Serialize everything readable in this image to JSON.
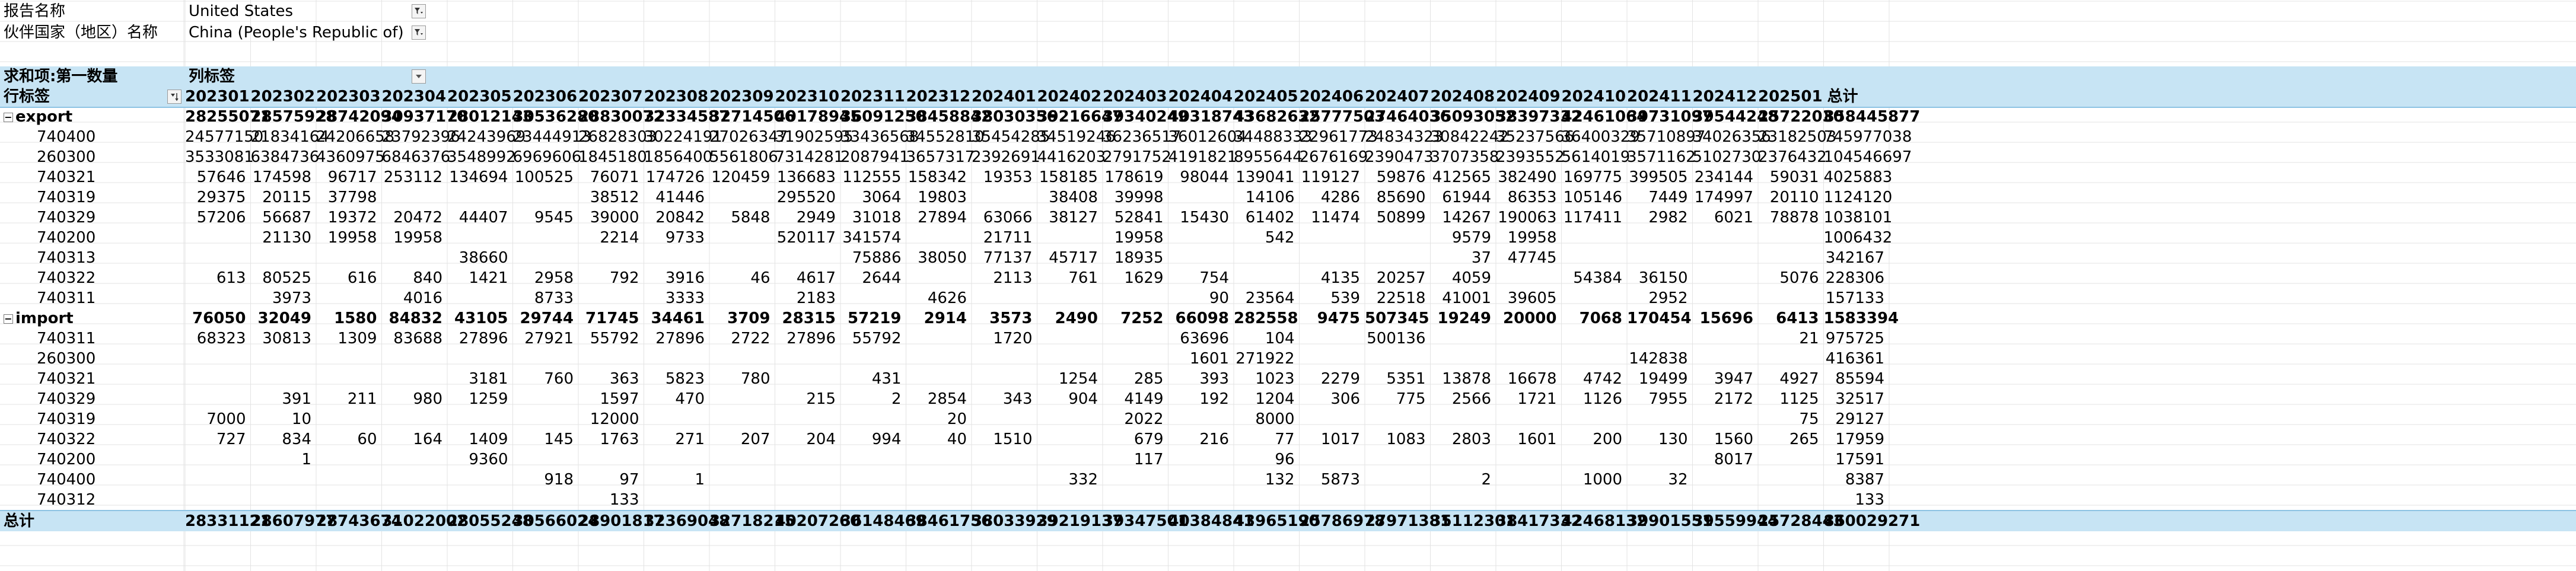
{
  "filters": [
    {
      "label": "报告名称",
      "value": "United States"
    },
    {
      "label": "伙伴国家（地区）名称",
      "value": "China (People's Republic of)"
    }
  ],
  "pivot": {
    "value_label": "求和项:第一数量",
    "col_label_caption": "列标签",
    "row_label_caption": "行标签",
    "total_label": "总计",
    "columns": [
      "202301",
      "202302",
      "202303",
      "202304",
      "202305",
      "202306",
      "202307",
      "202308",
      "202309",
      "202310",
      "202311",
      "202312",
      "202401",
      "202402",
      "202403",
      "202404",
      "202405",
      "202406",
      "202407",
      "202408",
      "202409",
      "202410",
      "202411",
      "202412",
      "202501",
      "总计"
    ],
    "groups": [
      {
        "name": "export",
        "totals": [
          "28255071",
          "28575928",
          "28742094",
          "30937170",
          "28012143",
          "30536280",
          "28830072",
          "32334587",
          "32714506",
          "40178945",
          "36091250",
          "38458842",
          "38030356",
          "39216647",
          "39340249",
          "40318743",
          "43682632",
          "25777503",
          "27464036",
          "35093052",
          "38397332",
          "42461064",
          "39731097",
          "39544248",
          "25722030",
          "858445877"
        ],
        "rows": [
          {
            "code": "740400",
            "values": [
              "24577150",
              "21834164",
              "24206658",
              "23792396",
              "24243969",
              "23444913",
              "26828303",
              "30224191",
              "27026347",
              "31902595",
              "33436568",
              "34552810",
              "35454285",
              "34519246",
              "36236517",
              "36012604",
              "34488333",
              "22961773",
              "24834323",
              "30842242",
              "35237566",
              "36400329",
              "35710897",
              "34026356",
              "23182503",
              "745977038"
            ]
          },
          {
            "code": "260300",
            "values": [
              "3533081",
              "6384736",
              "4360975",
              "6846376",
              "3548992",
              "6969606",
              "1845180",
              "1856400",
              "5561806",
              "7314281",
              "2087941",
              "3657317",
              "2392691",
              "4416203",
              "2791752",
              "4191821",
              "8955644",
              "2676169",
              "2390473",
              "3707358",
              "2393552",
              "5614019",
              "3571162",
              "5102730",
              "2376432",
              "104546697"
            ]
          },
          {
            "code": "740321",
            "values": [
              "57646",
              "174598",
              "96717",
              "253112",
              "134694",
              "100525",
              "76071",
              "174726",
              "120459",
              "136683",
              "112555",
              "158342",
              "19353",
              "158185",
              "178619",
              "98044",
              "139041",
              "119127",
              "59876",
              "412565",
              "382490",
              "169775",
              "399505",
              "234144",
              "59031",
              "4025883"
            ]
          },
          {
            "code": "740319",
            "values": [
              "29375",
              "20115",
              "37798",
              "",
              "",
              "",
              "38512",
              "41446",
              "",
              "295520",
              "3064",
              "19803",
              "",
              "38408",
              "39998",
              "",
              "14106",
              "4286",
              "85690",
              "61944",
              "86353",
              "105146",
              "7449",
              "174997",
              "20110",
              "1124120"
            ]
          },
          {
            "code": "740329",
            "values": [
              "57206",
              "56687",
              "19372",
              "20472",
              "44407",
              "9545",
              "39000",
              "20842",
              "5848",
              "2949",
              "31018",
              "27894",
              "63066",
              "38127",
              "52841",
              "15430",
              "61402",
              "11474",
              "50899",
              "14267",
              "190063",
              "117411",
              "2982",
              "6021",
              "78878",
              "1038101"
            ]
          },
          {
            "code": "740200",
            "values": [
              "",
              "21130",
              "19958",
              "19958",
              "",
              "",
              "2214",
              "9733",
              "",
              "520117",
              "341574",
              "",
              "21711",
              "",
              "19958",
              "",
              "542",
              "",
              "",
              "9579",
              "19958",
              "",
              "",
              "",
              "",
              "1006432"
            ]
          },
          {
            "code": "740313",
            "values": [
              "",
              "",
              "",
              "",
              "38660",
              "",
              "",
              "",
              "",
              "",
              "75886",
              "38050",
              "77137",
              "45717",
              "18935",
              "",
              "",
              "",
              "",
              "37",
              "47745",
              "",
              "",
              "",
              "",
              "342167"
            ]
          },
          {
            "code": "740322",
            "values": [
              "613",
              "80525",
              "616",
              "840",
              "1421",
              "2958",
              "792",
              "3916",
              "46",
              "4617",
              "2644",
              "",
              "2113",
              "761",
              "1629",
              "754",
              "",
              "4135",
              "20257",
              "4059",
              "",
              "54384",
              "36150",
              "",
              "5076",
              "228306"
            ]
          },
          {
            "code": "740311",
            "values": [
              "",
              "3973",
              "",
              "4016",
              "",
              "8733",
              "",
              "3333",
              "",
              "2183",
              "",
              "4626",
              "",
              "",
              "",
              "90",
              "23564",
              "539",
              "22518",
              "41001",
              "39605",
              "",
              "2952",
              "",
              "",
              "157133"
            ]
          }
        ]
      },
      {
        "name": "import",
        "totals": [
          "76050",
          "32049",
          "1580",
          "84832",
          "43105",
          "29744",
          "71745",
          "34461",
          "3709",
          "28315",
          "57219",
          "2914",
          "3573",
          "2490",
          "7252",
          "66098",
          "282558",
          "9475",
          "507345",
          "19249",
          "20000",
          "7068",
          "170454",
          "15696",
          "6413",
          "1583394"
        ],
        "rows": [
          {
            "code": "740311",
            "values": [
              "68323",
              "30813",
              "1309",
              "83688",
              "27896",
              "27921",
              "55792",
              "27896",
              "2722",
              "27896",
              "55792",
              "",
              "1720",
              "",
              "",
              "63696",
              "104",
              "",
              "500136",
              "",
              "",
              "",
              "",
              "",
              "21",
              "975725"
            ]
          },
          {
            "code": "260300",
            "values": [
              "",
              "",
              "",
              "",
              "",
              "",
              "",
              "",
              "",
              "",
              "",
              "",
              "",
              "",
              "",
              "1601",
              "271922",
              "",
              "",
              "",
              "",
              "",
              "142838",
              "",
              "",
              "416361"
            ]
          },
          {
            "code": "740321",
            "values": [
              "",
              "",
              "",
              "",
              "3181",
              "760",
              "363",
              "5823",
              "780",
              "",
              "431",
              "",
              "",
              "1254",
              "285",
              "393",
              "1023",
              "2279",
              "5351",
              "13878",
              "16678",
              "4742",
              "19499",
              "3947",
              "4927",
              "85594"
            ]
          },
          {
            "code": "740329",
            "values": [
              "",
              "391",
              "211",
              "980",
              "1259",
              "",
              "1597",
              "470",
              "",
              "215",
              "2",
              "2854",
              "343",
              "904",
              "4149",
              "192",
              "1204",
              "306",
              "775",
              "2566",
              "1721",
              "1126",
              "7955",
              "2172",
              "1125",
              "32517"
            ]
          },
          {
            "code": "740319",
            "values": [
              "7000",
              "10",
              "",
              "",
              "",
              "",
              "12000",
              "",
              "",
              "",
              "",
              "20",
              "",
              "",
              "2022",
              "",
              "8000",
              "",
              "",
              "",
              "",
              "",
              "",
              "",
              "75",
              "29127"
            ]
          },
          {
            "code": "740322",
            "values": [
              "727",
              "834",
              "60",
              "164",
              "1409",
              "145",
              "1763",
              "271",
              "207",
              "204",
              "994",
              "40",
              "1510",
              "",
              "679",
              "216",
              "77",
              "1017",
              "1083",
              "2803",
              "1601",
              "200",
              "130",
              "1560",
              "265",
              "17959"
            ]
          },
          {
            "code": "740200",
            "values": [
              "",
              "1",
              "",
              "",
              "9360",
              "",
              "",
              "",
              "",
              "",
              "",
              "",
              "",
              "",
              "117",
              "",
              "96",
              "",
              "",
              "",
              "",
              "",
              "",
              "8017",
              "",
              "17591"
            ]
          },
          {
            "code": "740400",
            "values": [
              "",
              "",
              "",
              "",
              "",
              "918",
              "97",
              "1",
              "",
              "",
              "",
              "",
              "",
              "332",
              "",
              "",
              "132",
              "5873",
              "",
              "2",
              "",
              "1000",
              "32",
              "",
              "",
              "8387"
            ]
          },
          {
            "code": "740312",
            "values": [
              "",
              "",
              "",
              "",
              "",
              "",
              "133",
              "",
              "",
              "",
              "",
              "",
              "",
              "",
              "",
              "",
              "",
              "",
              "",
              "",
              "",
              "",
              "",
              "",
              "",
              "133"
            ]
          }
        ]
      }
    ],
    "grand_totals": [
      "28331121",
      "28607977",
      "28743674",
      "31022002",
      "28055248",
      "30566024",
      "28901817",
      "32369048",
      "32718215",
      "40207260",
      "36148469",
      "38461756",
      "38033929",
      "39219137",
      "39347501",
      "40384841",
      "43965190",
      "25786978",
      "27971381",
      "35112301",
      "38417332",
      "42468132",
      "39901551",
      "39559944",
      "25728443",
      "860029271"
    ]
  }
}
